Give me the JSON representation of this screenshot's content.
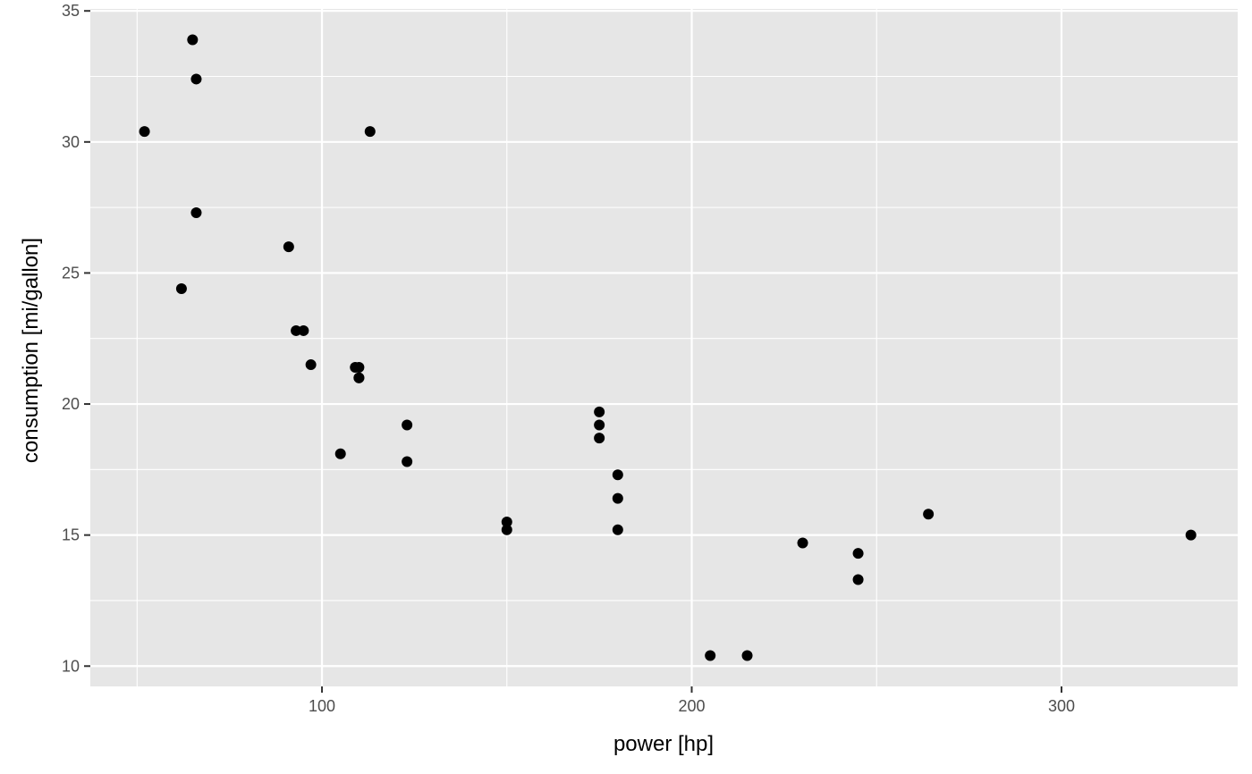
{
  "chart_data": {
    "type": "scatter",
    "xlabel": "power [hp]",
    "ylabel": "consumption [mi/gallon]",
    "xlim": [
      37.35,
      347.65
    ],
    "ylim": [
      9.225,
      35.075
    ],
    "x_major_ticks": [
      100,
      200,
      300
    ],
    "x_minor_ticks": [
      50,
      150,
      250
    ],
    "y_major_ticks": [
      10,
      15,
      20,
      25,
      30,
      35
    ],
    "y_minor_ticks": [
      12.5,
      17.5,
      22.5,
      27.5,
      32.5
    ],
    "grid": true,
    "panel_background": "#e6e6e6",
    "grid_color": "#ffffff",
    "point_color": "#000000",
    "points": [
      {
        "x": 110,
        "y": 21.0
      },
      {
        "x": 110,
        "y": 21.0
      },
      {
        "x": 93,
        "y": 22.8
      },
      {
        "x": 110,
        "y": 21.4
      },
      {
        "x": 175,
        "y": 18.7
      },
      {
        "x": 105,
        "y": 18.1
      },
      {
        "x": 245,
        "y": 14.3
      },
      {
        "x": 62,
        "y": 24.4
      },
      {
        "x": 95,
        "y": 22.8
      },
      {
        "x": 123,
        "y": 19.2
      },
      {
        "x": 123,
        "y": 17.8
      },
      {
        "x": 180,
        "y": 16.4
      },
      {
        "x": 180,
        "y": 17.3
      },
      {
        "x": 180,
        "y": 15.2
      },
      {
        "x": 205,
        "y": 10.4
      },
      {
        "x": 215,
        "y": 10.4
      },
      {
        "x": 230,
        "y": 14.7
      },
      {
        "x": 66,
        "y": 32.4
      },
      {
        "x": 52,
        "y": 30.4
      },
      {
        "x": 65,
        "y": 33.9
      },
      {
        "x": 97,
        "y": 21.5
      },
      {
        "x": 150,
        "y": 15.5
      },
      {
        "x": 150,
        "y": 15.2
      },
      {
        "x": 245,
        "y": 13.3
      },
      {
        "x": 175,
        "y": 19.2
      },
      {
        "x": 66,
        "y": 27.3
      },
      {
        "x": 91,
        "y": 26.0
      },
      {
        "x": 113,
        "y": 30.4
      },
      {
        "x": 264,
        "y": 15.8
      },
      {
        "x": 175,
        "y": 19.7
      },
      {
        "x": 335,
        "y": 15.0
      },
      {
        "x": 109,
        "y": 21.4
      }
    ]
  }
}
